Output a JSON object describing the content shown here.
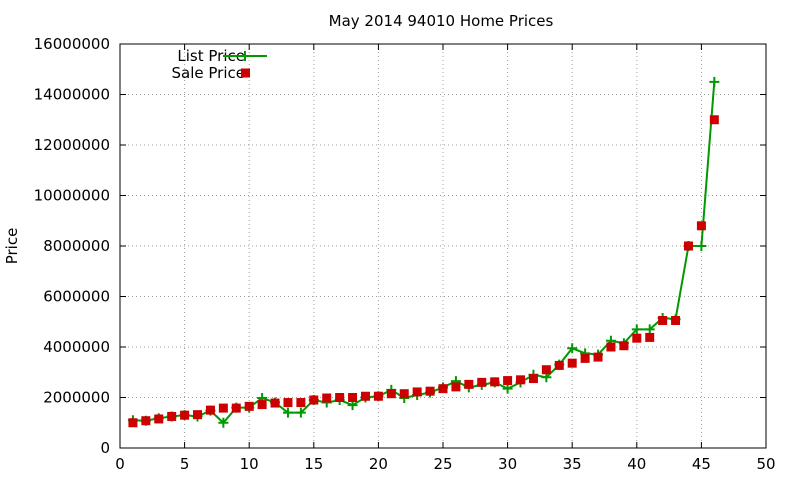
{
  "chart_data": {
    "type": "line",
    "title": "May 2014 94010 Home Prices",
    "xlabel": "",
    "ylabel": "Price",
    "xlim": [
      0,
      50
    ],
    "ylim": [
      0,
      16000000
    ],
    "xticks": [
      0,
      5,
      10,
      15,
      20,
      25,
      30,
      35,
      40,
      45,
      50
    ],
    "yticks": [
      0,
      2000000,
      4000000,
      6000000,
      8000000,
      10000000,
      12000000,
      14000000,
      16000000
    ],
    "grid": true,
    "legend_position": "top-left",
    "series": [
      {
        "name": "List Price",
        "style": "line-plus",
        "color": "#009900",
        "x": [
          1,
          2,
          3,
          4,
          5,
          6,
          7,
          8,
          9,
          10,
          11,
          12,
          13,
          14,
          15,
          16,
          17,
          18,
          19,
          20,
          21,
          22,
          23,
          24,
          25,
          26,
          27,
          28,
          29,
          30,
          31,
          32,
          33,
          34,
          35,
          36,
          37,
          38,
          39,
          40,
          41,
          42,
          43,
          44,
          45,
          46
        ],
        "y": [
          1100000,
          1080000,
          1180000,
          1250000,
          1300000,
          1250000,
          1480000,
          1000000,
          1600000,
          1600000,
          1980000,
          1800000,
          1400000,
          1400000,
          1900000,
          1800000,
          1900000,
          1700000,
          2000000,
          2050000,
          2300000,
          1980000,
          2100000,
          2200000,
          2400000,
          2650000,
          2400000,
          2500000,
          2600000,
          2350000,
          2600000,
          2900000,
          2800000,
          3300000,
          3950000,
          3750000,
          3700000,
          4250000,
          4150000,
          4700000,
          4700000,
          5150000,
          5100000,
          8000000,
          8000000,
          14500000
        ]
      },
      {
        "name": "Sale Price",
        "style": "points-square",
        "color": "#cc0000",
        "x": [
          1,
          2,
          3,
          4,
          5,
          6,
          7,
          8,
          9,
          10,
          11,
          12,
          13,
          14,
          15,
          16,
          17,
          18,
          19,
          20,
          21,
          22,
          23,
          24,
          25,
          26,
          27,
          28,
          29,
          30,
          31,
          32,
          33,
          34,
          35,
          36,
          37,
          38,
          39,
          40,
          41,
          42,
          43,
          44,
          45,
          46
        ],
        "y": [
          1000000,
          1080000,
          1150000,
          1250000,
          1300000,
          1320000,
          1500000,
          1580000,
          1580000,
          1650000,
          1720000,
          1780000,
          1800000,
          1800000,
          1900000,
          1980000,
          2000000,
          2000000,
          2050000,
          2050000,
          2150000,
          2150000,
          2220000,
          2250000,
          2350000,
          2420000,
          2520000,
          2600000,
          2620000,
          2670000,
          2700000,
          2750000,
          3100000,
          3270000,
          3360000,
          3550000,
          3600000,
          4000000,
          4050000,
          4350000,
          4380000,
          5050000,
          5050000,
          8000000,
          8800000,
          13000000
        ]
      }
    ]
  }
}
